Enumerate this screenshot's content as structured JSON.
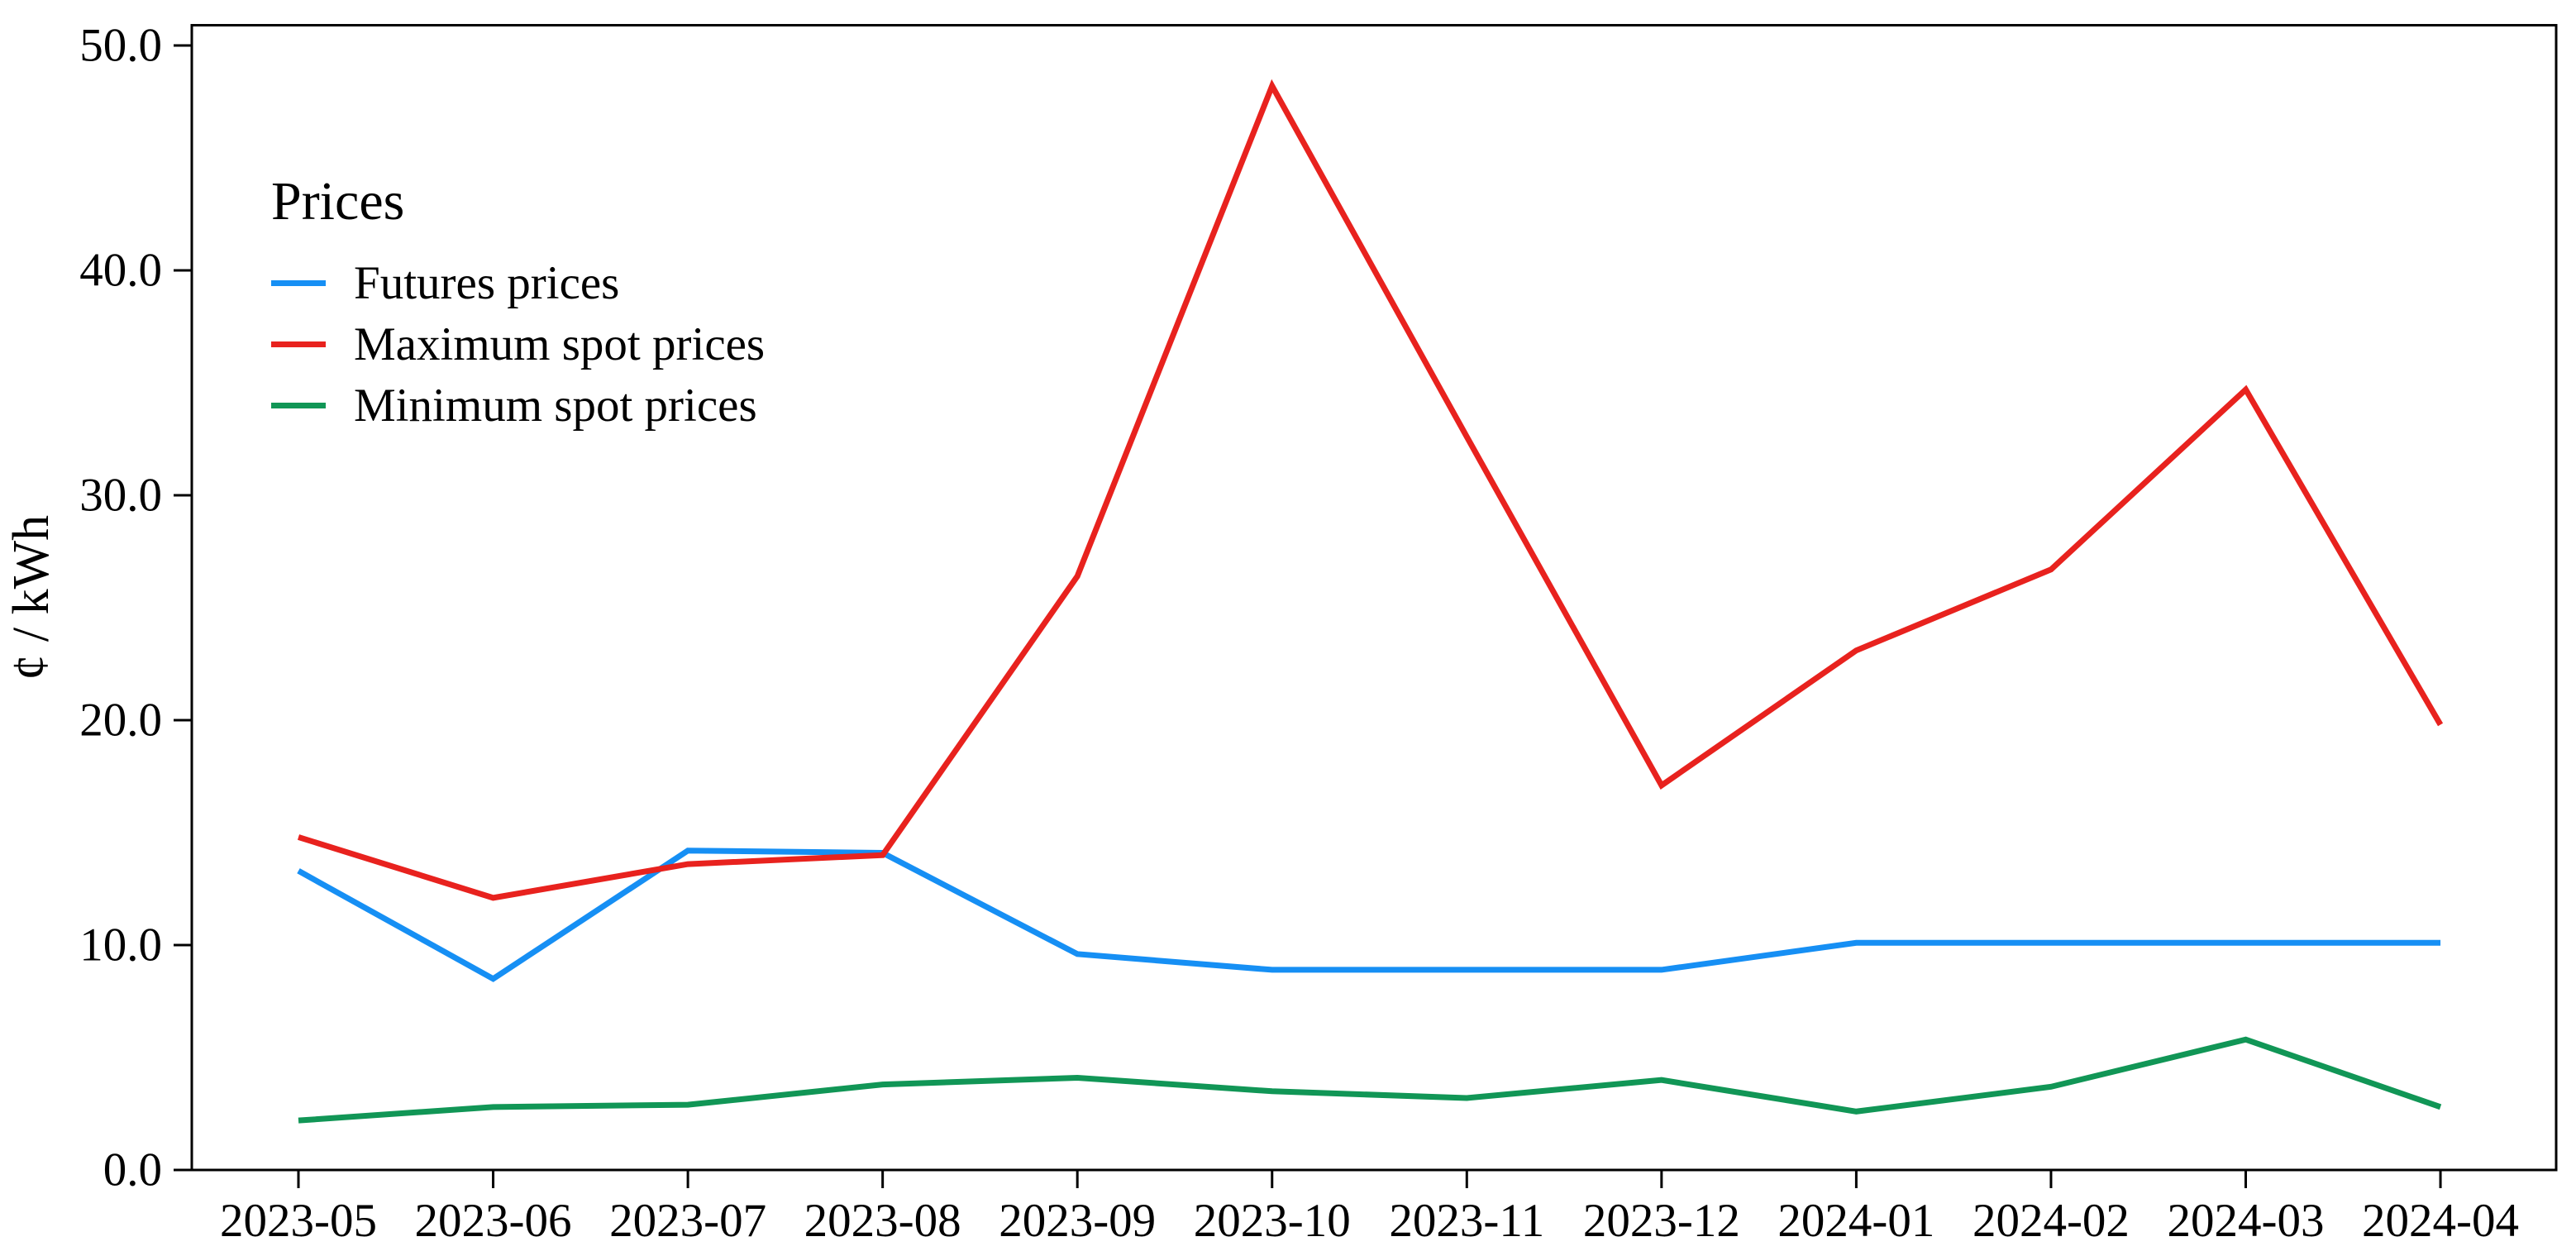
{
  "chart_data": {
    "type": "line",
    "legend_title": "Prices",
    "ylabel": "¢ / kWh",
    "categories": [
      "2023-05",
      "2023-06",
      "2023-07",
      "2023-08",
      "2023-09",
      "2023-10",
      "2023-11",
      "2023-12",
      "2024-01",
      "2024-02",
      "2024-03",
      "2024-04"
    ],
    "series": [
      {
        "name": "Futures prices",
        "color": "#168FF4",
        "values": [
          13.3,
          8.5,
          14.2,
          14.1,
          9.6,
          8.9,
          8.9,
          8.9,
          10.1,
          10.1,
          10.1,
          10.1
        ]
      },
      {
        "name": "Maximum spot prices",
        "color": "#E8221E",
        "values": [
          14.8,
          12.1,
          13.6,
          14.0,
          26.4,
          48.2,
          32.6,
          17.1,
          23.1,
          26.7,
          34.7,
          19.8
        ]
      },
      {
        "name": "Minimum spot prices",
        "color": "#119656",
        "values": [
          2.2,
          2.8,
          2.9,
          3.8,
          4.1,
          3.5,
          3.2,
          4.0,
          2.6,
          3.7,
          5.8,
          2.8
        ]
      }
    ],
    "yticks": [
      0,
      10,
      20,
      30,
      40,
      50
    ],
    "ytick_labels": [
      "0.0",
      "10.0",
      "20.0",
      "30.0",
      "40.0",
      "50.0"
    ],
    "ylim": [
      0,
      50.9
    ],
    "grid": false,
    "legend_position": "upper-left-inside",
    "axis_color": "#000000"
  }
}
